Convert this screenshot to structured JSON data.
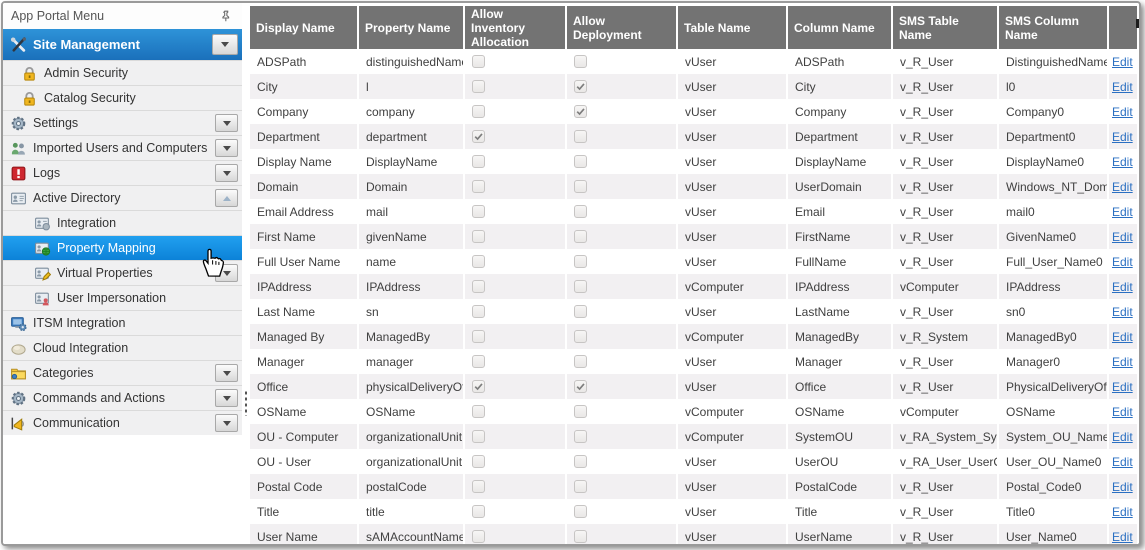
{
  "sidebar": {
    "title": "App Portal Menu",
    "items": [
      {
        "id": "site-management",
        "label": "Site Management",
        "icon": "site-management",
        "style": "primary",
        "indent": 0,
        "dropdown": "down",
        "selected": false
      },
      {
        "id": "admin-security",
        "label": "Admin Security",
        "icon": "lock",
        "indent": 1,
        "dropdown": "none",
        "selected": false
      },
      {
        "id": "catalog-security",
        "label": "Catalog Security",
        "icon": "lock",
        "indent": 1,
        "dropdown": "none",
        "selected": false
      },
      {
        "id": "settings",
        "label": "Settings",
        "icon": "gear",
        "indent": 0,
        "dropdown": "down",
        "selected": false
      },
      {
        "id": "imported-users-and-computers",
        "label": "Imported Users and Computers",
        "icon": "users",
        "indent": 0,
        "dropdown": "down",
        "selected": false
      },
      {
        "id": "logs",
        "label": "Logs",
        "icon": "logs",
        "indent": 0,
        "dropdown": "down",
        "selected": false
      },
      {
        "id": "active-directory",
        "label": "Active Directory",
        "icon": "directory",
        "indent": 0,
        "dropdown": "up",
        "selected": false
      },
      {
        "id": "integration",
        "label": "Integration",
        "icon": "card-user",
        "indent": 2,
        "dropdown": "none",
        "selected": false
      },
      {
        "id": "property-mapping",
        "label": "Property Mapping",
        "icon": "card-globe",
        "indent": 2,
        "dropdown": "none",
        "selected": true
      },
      {
        "id": "virtual-properties",
        "label": "Virtual Properties",
        "icon": "card-pencil",
        "indent": 2,
        "dropdown": "down",
        "selected": false
      },
      {
        "id": "user-impersonation",
        "label": "User Impersonation",
        "icon": "card-person",
        "indent": 2,
        "dropdown": "none",
        "selected": false
      },
      {
        "id": "itsm-integration",
        "label": "ITSM Integration",
        "icon": "monitor",
        "indent": 0,
        "dropdown": "none",
        "selected": false
      },
      {
        "id": "cloud-integration",
        "label": "Cloud Integration",
        "icon": "cloud",
        "indent": 0,
        "dropdown": "none",
        "selected": false
      },
      {
        "id": "categories",
        "label": "Categories",
        "icon": "folder",
        "indent": 0,
        "dropdown": "down",
        "selected": false
      },
      {
        "id": "commands-and-actions",
        "label": "Commands and Actions",
        "icon": "gear",
        "indent": 0,
        "dropdown": "down",
        "selected": false
      },
      {
        "id": "communication",
        "label": "Communication",
        "icon": "megaphone",
        "indent": 0,
        "dropdown": "down",
        "selected": false
      }
    ]
  },
  "table": {
    "columns": [
      "Display Name",
      "Property Name",
      "Allow Inventory Allocation",
      "Allow Deployment",
      "Table Name",
      "Column Name",
      "SMS Table Name",
      "SMS Column Name",
      ""
    ],
    "action_label": "Edit",
    "rows": [
      {
        "display_name": "ADSPath",
        "property_name": "distinguishedName",
        "allow_inventory_allocation": false,
        "allow_deployment": false,
        "table_name": "vUser",
        "column_name": "ADSPath",
        "sms_table_name": "v_R_User",
        "sms_column_name": "DistinguishedName"
      },
      {
        "display_name": "City",
        "property_name": "l",
        "allow_inventory_allocation": false,
        "allow_deployment": true,
        "table_name": "vUser",
        "column_name": "City",
        "sms_table_name": "v_R_User",
        "sms_column_name": "l0"
      },
      {
        "display_name": "Company",
        "property_name": "company",
        "allow_inventory_allocation": false,
        "allow_deployment": true,
        "table_name": "vUser",
        "column_name": "Company",
        "sms_table_name": "v_R_User",
        "sms_column_name": "Company0"
      },
      {
        "display_name": "Department",
        "property_name": "department",
        "allow_inventory_allocation": true,
        "allow_deployment": false,
        "table_name": "vUser",
        "column_name": "Department",
        "sms_table_name": "v_R_User",
        "sms_column_name": "Department0"
      },
      {
        "display_name": "Display Name",
        "property_name": "DisplayName",
        "allow_inventory_allocation": false,
        "allow_deployment": false,
        "table_name": "vUser",
        "column_name": "DisplayName",
        "sms_table_name": "v_R_User",
        "sms_column_name": "DisplayName0"
      },
      {
        "display_name": "Domain",
        "property_name": "Domain",
        "allow_inventory_allocation": false,
        "allow_deployment": false,
        "table_name": "vUser",
        "column_name": "UserDomain",
        "sms_table_name": "v_R_User",
        "sms_column_name": "Windows_NT_Dom"
      },
      {
        "display_name": "Email Address",
        "property_name": "mail",
        "allow_inventory_allocation": false,
        "allow_deployment": false,
        "table_name": "vUser",
        "column_name": "Email",
        "sms_table_name": "v_R_User",
        "sms_column_name": "mail0"
      },
      {
        "display_name": "First Name",
        "property_name": "givenName",
        "allow_inventory_allocation": false,
        "allow_deployment": false,
        "table_name": "vUser",
        "column_name": "FirstName",
        "sms_table_name": "v_R_User",
        "sms_column_name": "GivenName0"
      },
      {
        "display_name": "Full User Name",
        "property_name": "name",
        "allow_inventory_allocation": false,
        "allow_deployment": false,
        "table_name": "vUser",
        "column_name": "FullName",
        "sms_table_name": "v_R_User",
        "sms_column_name": "Full_User_Name0"
      },
      {
        "display_name": "IPAddress",
        "property_name": "IPAddress",
        "allow_inventory_allocation": false,
        "allow_deployment": false,
        "table_name": "vComputer",
        "column_name": "IPAddress",
        "sms_table_name": "vComputer",
        "sms_column_name": "IPAddress"
      },
      {
        "display_name": "Last Name",
        "property_name": "sn",
        "allow_inventory_allocation": false,
        "allow_deployment": false,
        "table_name": "vUser",
        "column_name": "LastName",
        "sms_table_name": "v_R_User",
        "sms_column_name": "sn0"
      },
      {
        "display_name": "Managed By",
        "property_name": "ManagedBy",
        "allow_inventory_allocation": false,
        "allow_deployment": false,
        "table_name": "vComputer",
        "column_name": "ManagedBy",
        "sms_table_name": "v_R_System",
        "sms_column_name": "ManagedBy0"
      },
      {
        "display_name": "Manager",
        "property_name": "manager",
        "allow_inventory_allocation": false,
        "allow_deployment": false,
        "table_name": "vUser",
        "column_name": "Manager",
        "sms_table_name": "v_R_User",
        "sms_column_name": "Manager0"
      },
      {
        "display_name": "Office",
        "property_name": "physicalDeliveryOf",
        "allow_inventory_allocation": true,
        "allow_deployment": true,
        "table_name": "vUser",
        "column_name": "Office",
        "sms_table_name": "v_R_User",
        "sms_column_name": "PhysicalDeliveryOf"
      },
      {
        "display_name": "OSName",
        "property_name": "OSName",
        "allow_inventory_allocation": false,
        "allow_deployment": false,
        "table_name": "vComputer",
        "column_name": "OSName",
        "sms_table_name": "vComputer",
        "sms_column_name": "OSName"
      },
      {
        "display_name": "OU - Computer",
        "property_name": "organizationalUnit",
        "allow_inventory_allocation": false,
        "allow_deployment": false,
        "table_name": "vComputer",
        "column_name": "SystemOU",
        "sms_table_name": "v_RA_System_Syste",
        "sms_column_name": "System_OU_Name0"
      },
      {
        "display_name": "OU - User",
        "property_name": "organizationalUnit",
        "allow_inventory_allocation": false,
        "allow_deployment": false,
        "table_name": "vUser",
        "column_name": "UserOU",
        "sms_table_name": "v_RA_User_UserOU",
        "sms_column_name": "User_OU_Name0"
      },
      {
        "display_name": "Postal Code",
        "property_name": "postalCode",
        "allow_inventory_allocation": false,
        "allow_deployment": false,
        "table_name": "vUser",
        "column_name": "PostalCode",
        "sms_table_name": "v_R_User",
        "sms_column_name": "Postal_Code0"
      },
      {
        "display_name": "Title",
        "property_name": "title",
        "allow_inventory_allocation": false,
        "allow_deployment": false,
        "table_name": "vUser",
        "column_name": "Title",
        "sms_table_name": "v_R_User",
        "sms_column_name": "Title0"
      },
      {
        "display_name": "User Name",
        "property_name": "sAMAccountName",
        "allow_inventory_allocation": false,
        "allow_deployment": false,
        "table_name": "vUser",
        "column_name": "UserName",
        "sms_table_name": "v_R_User",
        "sms_column_name": "User_Name0"
      }
    ]
  },
  "colors": {
    "header_gray": "#737373",
    "selected_blue": "#0c82d8",
    "primary_gradient_top": "#2e93d8",
    "primary_gradient_bottom": "#1a70bb",
    "link_blue": "#2a6fc2",
    "row_alt": "#f2f0f2"
  }
}
